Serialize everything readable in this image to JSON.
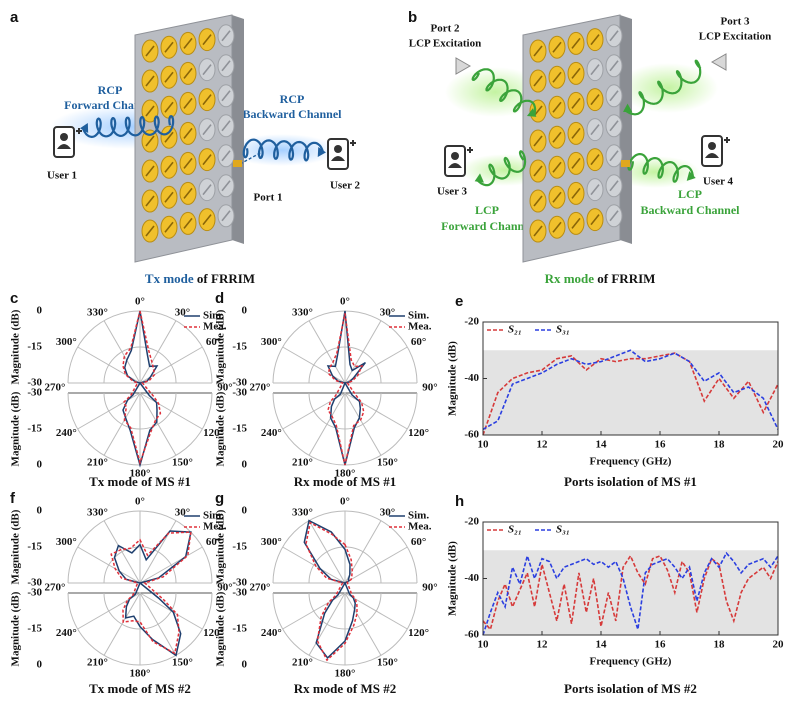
{
  "illustrations": [
    {
      "label": "a",
      "forward": [
        "RCP",
        "Forward Channel"
      ],
      "backward": [
        "RCP",
        "Backward Channel"
      ],
      "user_left": "User 1",
      "user_right": "User 2",
      "port": "Port 1",
      "caption_highlight": "Tx mode",
      "caption_rest": "of FRRIM"
    },
    {
      "label": "b",
      "port_left": [
        "Port 2",
        "LCP Excitation"
      ],
      "port_right": [
        "Port 3",
        "LCP Excitation"
      ],
      "user_left": "User 3",
      "user_right": "User 4",
      "forward": [
        "LCP",
        "Forward Channel"
      ],
      "backward": [
        "LCP",
        "Backward Channel"
      ],
      "caption_highlight": "Rx mode",
      "caption_rest": "of FRRIM"
    }
  ],
  "chart_data": [
    {
      "type": "polar",
      "panel_label": "c",
      "title": "Tx mode of MS #1",
      "r_label": "Magnitude (dB)",
      "rlim": [
        -30,
        0
      ],
      "rticks": [
        -30,
        -15,
        0
      ],
      "thetaticks": [
        {
          "value": 0,
          "label": "0°"
        },
        {
          "value": 30,
          "label": "30°"
        },
        {
          "value": 60,
          "label": "60°"
        },
        {
          "value": 90,
          "label": "90°"
        },
        {
          "value": 120,
          "label": "120°"
        },
        {
          "value": 150,
          "label": "150°"
        },
        {
          "value": 180,
          "label": "180°"
        },
        {
          "value": 210,
          "label": "210°"
        },
        {
          "value": 240,
          "label": "240°"
        },
        {
          "value": 270,
          "label": "270°"
        },
        {
          "value": 300,
          "label": "300°"
        },
        {
          "value": 330,
          "label": "330°"
        }
      ],
      "theta": [
        0,
        15,
        30,
        45,
        60,
        75,
        90,
        105,
        120,
        135,
        150,
        165,
        180,
        195,
        210,
        225,
        240,
        255,
        270,
        285,
        300,
        315,
        330,
        345
      ],
      "series": [
        {
          "name": "Sim.",
          "color": "#1f3f6e",
          "dashed": false,
          "values": [
            0,
            -18,
            -22,
            -20,
            -25,
            -27,
            -30,
            -26,
            -22,
            -20,
            -16,
            -14,
            0,
            -14,
            -18,
            -20,
            -24,
            -27,
            -30,
            -28,
            -24,
            -21,
            -19,
            -16
          ]
        },
        {
          "name": "Mea.",
          "color": "#e0303a",
          "dashed": true,
          "values": [
            0,
            -16,
            -20,
            -22,
            -23,
            -26,
            -29,
            -24,
            -21,
            -18,
            -17,
            -13,
            -1,
            -15,
            -17,
            -22,
            -22,
            -26,
            -29,
            -27,
            -23,
            -20,
            -17,
            -15
          ]
        }
      ]
    },
    {
      "type": "polar",
      "panel_label": "d",
      "title": "Rx mode of MS #1",
      "r_label": "Magnitude (dB)",
      "rlim": [
        -30,
        0
      ],
      "rticks": [
        -30,
        -15,
        0
      ],
      "thetaticks": [
        {
          "value": 0,
          "label": "0°"
        },
        {
          "value": 30,
          "label": "30°"
        },
        {
          "value": 60,
          "label": "60°"
        },
        {
          "value": 90,
          "label": "90°"
        },
        {
          "value": 120,
          "label": "120°"
        },
        {
          "value": 150,
          "label": "150°"
        },
        {
          "value": 180,
          "label": "180°"
        },
        {
          "value": 210,
          "label": "210°"
        },
        {
          "value": 240,
          "label": "240°"
        },
        {
          "value": 270,
          "label": "270°"
        },
        {
          "value": 300,
          "label": "300°"
        },
        {
          "value": 330,
          "label": "330°"
        }
      ],
      "theta": [
        0,
        15,
        30,
        45,
        60,
        75,
        90,
        105,
        120,
        135,
        150,
        165,
        180,
        195,
        210,
        225,
        240,
        255,
        270,
        285,
        300,
        315,
        330,
        345
      ],
      "series": [
        {
          "name": "Sim.",
          "color": "#1f3f6e",
          "dashed": false,
          "values": [
            0,
            -22,
            -24,
            -18,
            -26,
            -28,
            -30,
            -27,
            -23,
            -21,
            -18,
            -15,
            0,
            -15,
            -18,
            -22,
            -25,
            -28,
            -30,
            -27,
            -24,
            -20,
            -22,
            -18
          ]
        },
        {
          "name": "Mea.",
          "color": "#e0303a",
          "dashed": true,
          "values": [
            -1,
            -20,
            -22,
            -20,
            -24,
            -27,
            -29,
            -25,
            -22,
            -19,
            -17,
            -16,
            0,
            -16,
            -19,
            -20,
            -23,
            -26,
            -29,
            -26,
            -22,
            -21,
            -20,
            -17
          ]
        }
      ]
    },
    {
      "type": "line",
      "panel_label": "e",
      "title": "Ports isolation of MS #1",
      "x_label": "Frequency (GHz)",
      "y_label": "Magnitude (dB)",
      "xlim": [
        10,
        20
      ],
      "xticks": [
        10,
        12,
        14,
        16,
        18,
        20
      ],
      "ylim": [
        -60,
        -20
      ],
      "yticks": [
        -60,
        -40,
        -20
      ],
      "shaded_range": [
        -60,
        -30
      ],
      "x": [
        10,
        10.5,
        11,
        11.5,
        12,
        12.5,
        13,
        13.5,
        14,
        14.5,
        15,
        15.5,
        16,
        16.5,
        17,
        17.5,
        18,
        18.5,
        19,
        19.5,
        20
      ],
      "series": [
        {
          "name": "S₂₁",
          "color": "#d63a3a",
          "values": [
            -60,
            -45,
            -40,
            -38,
            -37,
            -33,
            -32,
            -37,
            -33,
            -34,
            -33,
            -33,
            -32,
            -31,
            -34,
            -48,
            -40,
            -47,
            -41,
            -52,
            -42
          ]
        },
        {
          "name": "S₃₁",
          "color": "#2b3fe0",
          "values": [
            -58,
            -55,
            -42,
            -40,
            -38,
            -35,
            -33,
            -35,
            -34,
            -32,
            -30,
            -34,
            -33,
            -31,
            -34,
            -41,
            -38,
            -45,
            -43,
            -47,
            -58
          ]
        }
      ]
    },
    {
      "type": "polar",
      "panel_label": "f",
      "title": "Tx mode of MS #2",
      "r_label": "Magnitude (dB)",
      "rlim": [
        -30,
        0
      ],
      "rticks": [
        -30,
        -15,
        0
      ],
      "thetaticks": [
        {
          "value": 0,
          "label": "0°"
        },
        {
          "value": 30,
          "label": "30°"
        },
        {
          "value": 60,
          "label": "60°"
        },
        {
          "value": 90,
          "label": "90°"
        },
        {
          "value": 120,
          "label": "120°"
        },
        {
          "value": 150,
          "label": "150°"
        },
        {
          "value": 180,
          "label": "180°"
        },
        {
          "value": 210,
          "label": "210°"
        },
        {
          "value": 240,
          "label": "240°"
        },
        {
          "value": 270,
          "label": "270°"
        },
        {
          "value": 300,
          "label": "300°"
        },
        {
          "value": 330,
          "label": "330°"
        }
      ],
      "theta": [
        0,
        15,
        30,
        45,
        60,
        75,
        90,
        105,
        120,
        135,
        150,
        165,
        180,
        195,
        210,
        225,
        240,
        255,
        270,
        285,
        300,
        315,
        330,
        345
      ],
      "series": [
        {
          "name": "Sim.",
          "color": "#1f3f6e",
          "dashed": false,
          "values": [
            -14,
            -20,
            -5,
            0,
            -8,
            -22,
            -30,
            -22,
            -14,
            -6,
            0,
            -10,
            -16,
            -20,
            -18,
            -22,
            -25,
            -28,
            -30,
            -24,
            -20,
            -15,
            -12,
            -17
          ]
        },
        {
          "name": "Mea.",
          "color": "#e0303a",
          "dashed": true,
          "values": [
            -12,
            -18,
            -6,
            0,
            -7,
            -20,
            -28,
            -20,
            -12,
            -7,
            -1,
            -9,
            -18,
            -18,
            -16,
            -20,
            -24,
            -27,
            -29,
            -22,
            -18,
            -13,
            -14,
            -15
          ]
        }
      ]
    },
    {
      "type": "polar",
      "panel_label": "g",
      "title": "Rx mode of MS #2",
      "r_label": "Magnitude (dB)",
      "rlim": [
        -30,
        0
      ],
      "rticks": [
        -30,
        -15,
        0
      ],
      "thetaticks": [
        {
          "value": 0,
          "label": "0°"
        },
        {
          "value": 30,
          "label": "30°"
        },
        {
          "value": 60,
          "label": "60°"
        },
        {
          "value": 90,
          "label": "90°"
        },
        {
          "value": 120,
          "label": "120°"
        },
        {
          "value": 150,
          "label": "150°"
        },
        {
          "value": 180,
          "label": "180°"
        },
        {
          "value": 210,
          "label": "210°"
        },
        {
          "value": 240,
          "label": "240°"
        },
        {
          "value": 270,
          "label": "270°"
        },
        {
          "value": 300,
          "label": "300°"
        },
        {
          "value": 330,
          "label": "330°"
        }
      ],
      "theta": [
        0,
        15,
        30,
        45,
        60,
        75,
        90,
        105,
        120,
        135,
        150,
        165,
        180,
        195,
        210,
        225,
        240,
        255,
        270,
        285,
        300,
        315,
        330,
        345
      ],
      "series": [
        {
          "name": "Sim.",
          "color": "#1f3f6e",
          "dashed": false,
          "values": [
            -16,
            -22,
            -26,
            -28,
            -28,
            -30,
            -30,
            -28,
            -26,
            -24,
            -22,
            -18,
            -10,
            -2,
            -6,
            -18,
            -24,
            -27,
            -30,
            -24,
            -18,
            -6,
            0,
            -8
          ]
        },
        {
          "name": "Mea.",
          "color": "#e0303a",
          "dashed": true,
          "values": [
            -14,
            -20,
            -24,
            -26,
            -27,
            -29,
            -29,
            -27,
            -25,
            -23,
            -20,
            -16,
            -9,
            -1,
            -7,
            -16,
            -22,
            -26,
            -29,
            -22,
            -16,
            -7,
            -1,
            -9
          ]
        }
      ]
    },
    {
      "type": "line",
      "panel_label": "h",
      "title": "Ports isolation of MS #2",
      "x_label": "Frequency (GHz)",
      "y_label": "Magnitude (dB)",
      "xlim": [
        10,
        20
      ],
      "xticks": [
        10,
        12,
        14,
        16,
        18,
        20
      ],
      "ylim": [
        -60,
        -20
      ],
      "yticks": [
        -60,
        -40,
        -20
      ],
      "shaded_range": [
        -60,
        -30
      ],
      "x": [
        10,
        10.25,
        10.5,
        10.75,
        11,
        11.25,
        11.5,
        11.75,
        12,
        12.25,
        12.5,
        12.75,
        13,
        13.25,
        13.5,
        13.75,
        14,
        14.25,
        14.5,
        14.75,
        15,
        15.25,
        15.5,
        15.75,
        16,
        16.25,
        16.5,
        16.75,
        17,
        17.25,
        17.5,
        17.75,
        18,
        18.25,
        18.5,
        18.75,
        19,
        19.25,
        19.5,
        19.75,
        20
      ],
      "series": [
        {
          "name": "S₂₁",
          "color": "#d63a3a",
          "values": [
            -55,
            -58,
            -48,
            -42,
            -50,
            -44,
            -38,
            -50,
            -35,
            -45,
            -55,
            -42,
            -56,
            -38,
            -52,
            -40,
            -57,
            -45,
            -55,
            -36,
            -32,
            -38,
            -42,
            -33,
            -32,
            -37,
            -45,
            -34,
            -38,
            -52,
            -40,
            -33,
            -35,
            -48,
            -55,
            -45,
            -40,
            -38,
            -36,
            -40,
            -34
          ]
        },
        {
          "name": "S₃₁",
          "color": "#2b3fe0",
          "values": [
            -60,
            -52,
            -45,
            -50,
            -36,
            -42,
            -32,
            -40,
            -33,
            -34,
            -40,
            -36,
            -35,
            -34,
            -33,
            -35,
            -34,
            -36,
            -34,
            -40,
            -50,
            -58,
            -38,
            -35,
            -34,
            -33,
            -36,
            -40,
            -36,
            -48,
            -38,
            -33,
            -36,
            -31,
            -34,
            -38,
            -35,
            -34,
            -33,
            -36,
            -32
          ]
        }
      ]
    }
  ]
}
